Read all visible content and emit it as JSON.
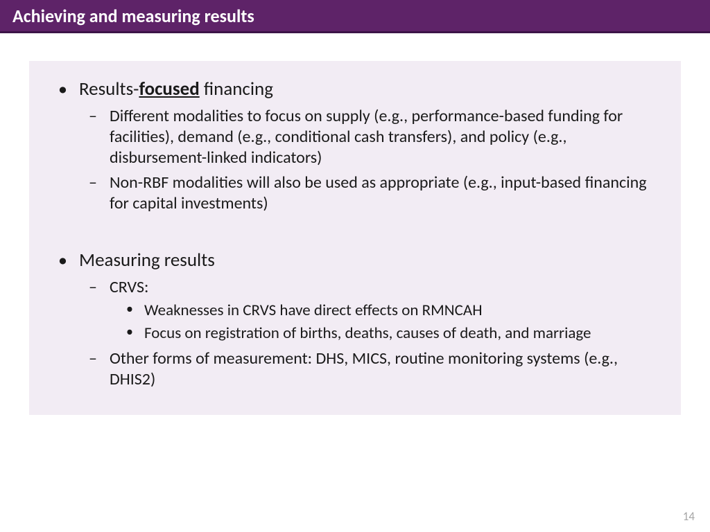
{
  "header": {
    "title": "Achieving and measuring results"
  },
  "content": {
    "bullets": [
      {
        "title_prefix": "Results-",
        "title_emph": "focused",
        "title_suffix": " financing",
        "sub": [
          {
            "text": "Different modalities to focus on supply (e.g., performance-based funding for facilities), demand (e.g., conditional cash transfers), and policy (e.g., disbursement-linked indicators)"
          },
          {
            "text": "Non-RBF modalities will also be used as appropriate (e.g., input-based financing for capital investments)"
          }
        ]
      },
      {
        "title": "Measuring results",
        "sub": [
          {
            "text": "CRVS:",
            "subsub": [
              "Weaknesses in CRVS have direct effects on RMNCAH",
              "Focus on registration of births, deaths, causes of death, and marriage"
            ]
          },
          {
            "text": "Other forms of measurement: DHS, MICS, routine monitoring systems (e.g., DHIS2)"
          }
        ]
      }
    ]
  },
  "page_number": "14",
  "colors": {
    "header_bg": "#5e2368",
    "header_border": "#3d1548",
    "content_bg": "#f2ecf4",
    "text": "#1a1a1a",
    "page_num": "#a6a6a6"
  }
}
